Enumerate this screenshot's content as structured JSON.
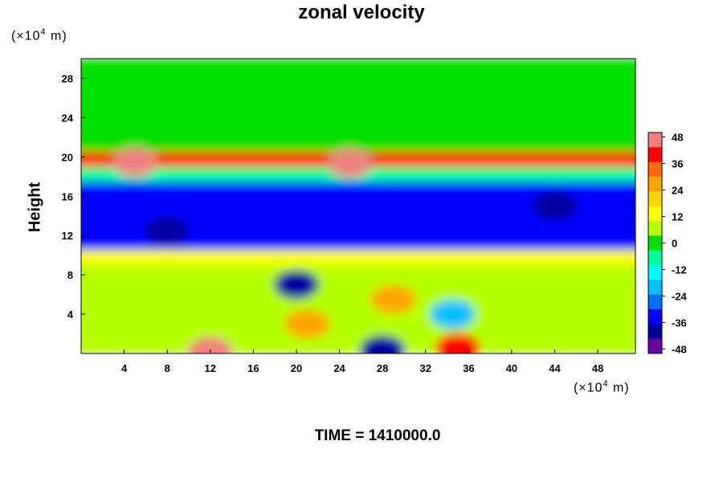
{
  "chart_data": {
    "type": "heatmap",
    "title": "zonal velocity",
    "ylabel": "Height",
    "xlabel": "",
    "x_unit": {
      "prefix": "(×10",
      "exp": "4",
      "suffix": " m)"
    },
    "y_unit": {
      "prefix": "(×10",
      "exp": "4",
      "suffix": " m)"
    },
    "xlim": [
      0,
      51.5
    ],
    "ylim": [
      0,
      30
    ],
    "x_ticks": [
      4,
      8,
      12,
      16,
      20,
      24,
      28,
      32,
      36,
      40,
      44,
      48
    ],
    "y_ticks": [
      4,
      8,
      12,
      16,
      20,
      24,
      28
    ],
    "colorbar": {
      "min": -50,
      "max": 50,
      "ticks": [
        48,
        36,
        24,
        12,
        0,
        -12,
        -24,
        -36,
        -48
      ],
      "colors": [
        "#f08080",
        "#ff0000",
        "#ff6a00",
        "#ffa500",
        "#ffd700",
        "#ffff00",
        "#b4ff00",
        "#00e000",
        "#00ff9a",
        "#00ffff",
        "#00c0ff",
        "#0070ff",
        "#0000ff",
        "#0000a0",
        "#6a00a0"
      ]
    },
    "layers": [
      {
        "y_from": 20.5,
        "y_to": 30,
        "value": 2
      },
      {
        "y_from": 19,
        "y_to": 20.5,
        "value": 38
      },
      {
        "y_from": 17.5,
        "y_to": 19,
        "value": -8
      },
      {
        "y_from": 10.5,
        "y_to": 17.5,
        "value": -30
      },
      {
        "y_from": 9,
        "y_to": 10.5,
        "value": 12
      },
      {
        "y_from": 0,
        "y_to": 9,
        "value": 6
      }
    ],
    "features": [
      {
        "x": 20,
        "y": 7,
        "value": -38
      },
      {
        "x": 29,
        "y": 5.5,
        "value": 30
      },
      {
        "x": 34.5,
        "y": 4,
        "value": -22
      },
      {
        "x": 21,
        "y": 3,
        "value": 28
      },
      {
        "x": 12,
        "y": 0.2,
        "value": 48
      },
      {
        "x": 28,
        "y": 0.4,
        "value": -40
      },
      {
        "x": 35,
        "y": 0.6,
        "value": 42
      },
      {
        "x": 8,
        "y": 12.5,
        "value": -40
      },
      {
        "x": 22,
        "y": 15.5,
        "value": -36
      },
      {
        "x": 44,
        "y": 15,
        "value": -38
      },
      {
        "x": 5,
        "y": 19.5,
        "value": 44
      },
      {
        "x": 25,
        "y": 19.4,
        "value": 44
      }
    ]
  },
  "footer": {
    "time_label": "TIME = 1410000.0"
  }
}
